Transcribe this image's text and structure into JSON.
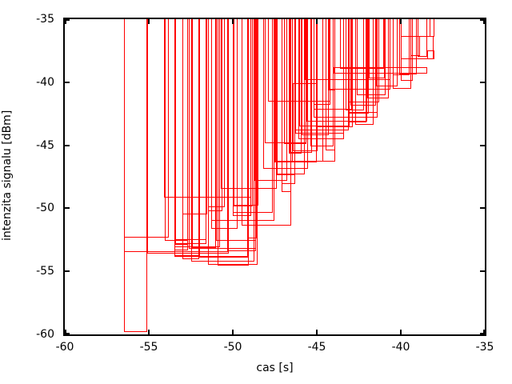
{
  "figure": {
    "background": "#ffffff",
    "border_color": "#000000",
    "box_color": "#ff0000",
    "xlabel": "cas [s]",
    "ylabel": "intenzita signalu [dBm]"
  },
  "chart_data": {
    "type": "rectangles",
    "style": "overlapping unfilled red boxes (gnuplot-like, tops above -35 are clipped by the plot frame)",
    "title": "",
    "xlabel": "cas [s]",
    "ylabel": "intenzita signalu [dBm]",
    "xlim": [
      -60,
      -35
    ],
    "ylim": [
      -60,
      -35
    ],
    "x_ticks": [
      -60,
      -55,
      -50,
      -45,
      -40,
      -35
    ],
    "y_ticks": [
      -35,
      -40,
      -45,
      -50,
      -55,
      -60
    ],
    "grid": false,
    "legend": "none",
    "clip_top_value": -34,
    "rects_format": [
      "x_left",
      "x_right",
      "y_bottom",
      "y_top"
    ],
    "rects": [
      [
        -56.5,
        -55.1,
        -59.8,
        -34
      ],
      [
        -56.5,
        -53.8,
        -52.3,
        -34
      ],
      [
        -56.5,
        -50.3,
        -53.45,
        -34
      ],
      [
        -55.1,
        -50.25,
        -53.57,
        -34
      ],
      [
        -54.05,
        -52.65,
        -52.6,
        -34
      ],
      [
        -54.1,
        -48.9,
        -49.15,
        -34
      ],
      [
        -53.5,
        -52.65,
        -52.9,
        -34
      ],
      [
        -53.5,
        -50.75,
        -53.1,
        -34
      ],
      [
        -52.45,
        -51.0,
        -53.17,
        -34
      ],
      [
        -53.5,
        -52.65,
        -53.35,
        -34
      ],
      [
        -53.5,
        -52.0,
        -53.8,
        -34
      ],
      [
        -53.0,
        -52.0,
        -54.05,
        -34
      ],
      [
        -53.45,
        -51.55,
        -52.5,
        -34
      ],
      [
        -53.45,
        -51.55,
        -52.8,
        -34
      ],
      [
        -53.5,
        -49.05,
        -53.85,
        -34
      ],
      [
        -52.0,
        -49.1,
        -53.9,
        -34
      ],
      [
        -52.5,
        -48.7,
        -54.2,
        -34
      ],
      [
        -51.5,
        -48.55,
        -54.45,
        -34
      ],
      [
        -50.9,
        -49.05,
        -54.52,
        -34
      ],
      [
        -52.6,
        -48.6,
        -53.2,
        -34
      ],
      [
        -50.3,
        -48.6,
        -53.42,
        -34
      ],
      [
        -51.0,
        -48.6,
        -52.6,
        -34
      ],
      [
        -49.1,
        -48.55,
        -52.4,
        -34
      ],
      [
        -53.0,
        -51.55,
        -50.45,
        -34
      ],
      [
        -51.5,
        -50.5,
        -49.9,
        -34
      ],
      [
        -51.5,
        -50.6,
        -50.2,
        -34
      ],
      [
        -50.0,
        -48.5,
        -49.8,
        -34
      ],
      [
        -49.95,
        -48.8,
        -49.87,
        -34
      ],
      [
        -50.0,
        -47.6,
        -50.35,
        -34
      ],
      [
        -50.0,
        -48.9,
        -50.6,
        -34
      ],
      [
        -51.3,
        -47.5,
        -51.0,
        -34
      ],
      [
        -49.5,
        -46.55,
        -51.35,
        -34
      ],
      [
        -51.3,
        -49.7,
        -51.6,
        -34
      ],
      [
        -50.7,
        -47.4,
        -48.45,
        -34
      ],
      [
        -47.1,
        -46.5,
        -48.7,
        -34
      ],
      [
        -48.7,
        -46.75,
        -47.8,
        -34
      ],
      [
        -47.1,
        -46.3,
        -48.1,
        -34
      ],
      [
        -47.4,
        -45.7,
        -47.3,
        -34
      ],
      [
        -47.45,
        -46.3,
        -47.4,
        -34
      ],
      [
        -48.2,
        -45.5,
        -46.85,
        -34
      ],
      [
        -47.5,
        -44.6,
        -46.3,
        -34
      ],
      [
        -47.55,
        -45.0,
        -46.37,
        -34
      ],
      [
        -46.5,
        -43.9,
        -46.28,
        -34
      ],
      [
        -46.6,
        -45.3,
        -45.6,
        -34
      ],
      [
        -46.65,
        -45.9,
        -45.67,
        -34
      ],
      [
        -45.4,
        -44.0,
        -45.1,
        -34
      ],
      [
        -44.5,
        -43.9,
        -45.4,
        -34
      ],
      [
        -48.1,
        -45.6,
        -44.85,
        -34
      ],
      [
        -46.95,
        -45.6,
        -44.92,
        -34
      ],
      [
        -46.1,
        -43.4,
        -44.5,
        -34
      ],
      [
        -46.45,
        -44.95,
        -45.5,
        -40.1
      ],
      [
        -46.3,
        -43.4,
        -44.1,
        -34
      ],
      [
        -45.9,
        -44.3,
        -44.17,
        -34
      ],
      [
        -46.3,
        -43.1,
        -43.8,
        -34
      ],
      [
        -46.05,
        -43.05,
        -43.5,
        -34
      ],
      [
        -45.0,
        -42.85,
        -43.57,
        -34
      ],
      [
        -45.6,
        -42.0,
        -43.1,
        -34
      ],
      [
        -43.1,
        -42.05,
        -43.17,
        -34
      ],
      [
        -45.2,
        -42.9,
        -42.15,
        -34
      ],
      [
        -43.1,
        -41.4,
        -42.4,
        -34
      ],
      [
        -43.15,
        -41.9,
        -42.47,
        -34
      ],
      [
        -45.2,
        -41.4,
        -42.8,
        -34
      ],
      [
        -45.2,
        -44.2,
        -41.8,
        -34
      ],
      [
        -43.0,
        -41.5,
        -41.87,
        -34
      ],
      [
        -47.9,
        -44.2,
        -41.55,
        -34
      ],
      [
        -43.1,
        -41.3,
        -41.62,
        -34
      ],
      [
        -43.3,
        -42.2,
        -42.25,
        -34
      ],
      [
        -42.7,
        -41.6,
        -43.35,
        -34
      ],
      [
        -42.6,
        -40.9,
        -41.0,
        -34
      ],
      [
        -44.3,
        -40.6,
        -40.6,
        -34
      ],
      [
        -44.35,
        -43.9,
        -40.67,
        -34
      ],
      [
        -41.5,
        -40.2,
        -40.3,
        -34
      ],
      [
        -40.5,
        -39.4,
        -40.55,
        -34
      ],
      [
        -40.0,
        -39.3,
        -39.9,
        -34
      ],
      [
        -45.7,
        -40.6,
        -39.85,
        -34
      ],
      [
        -40.5,
        -39.5,
        -39.45,
        -34
      ],
      [
        -41.9,
        -40.95,
        -39.7,
        -34
      ],
      [
        -44.0,
        -38.45,
        -39.3,
        -38.78
      ],
      [
        -43.6,
        -41.0,
        -38.95,
        -34
      ],
      [
        -40.0,
        -38.05,
        -38.2,
        -36.3
      ],
      [
        -38.45,
        -38.0,
        -38.2,
        -37.5
      ],
      [
        -39.0,
        -38.45,
        -38.0,
        -34
      ],
      [
        -39.45,
        -38.85,
        -37.9,
        -36.32
      ],
      [
        -40.1,
        -39.05,
        -39.35,
        -34
      ],
      [
        -42.0,
        -40.7,
        -41.3,
        -34
      ],
      [
        -38.3,
        -38.0,
        -36.4,
        -34
      ]
    ]
  }
}
